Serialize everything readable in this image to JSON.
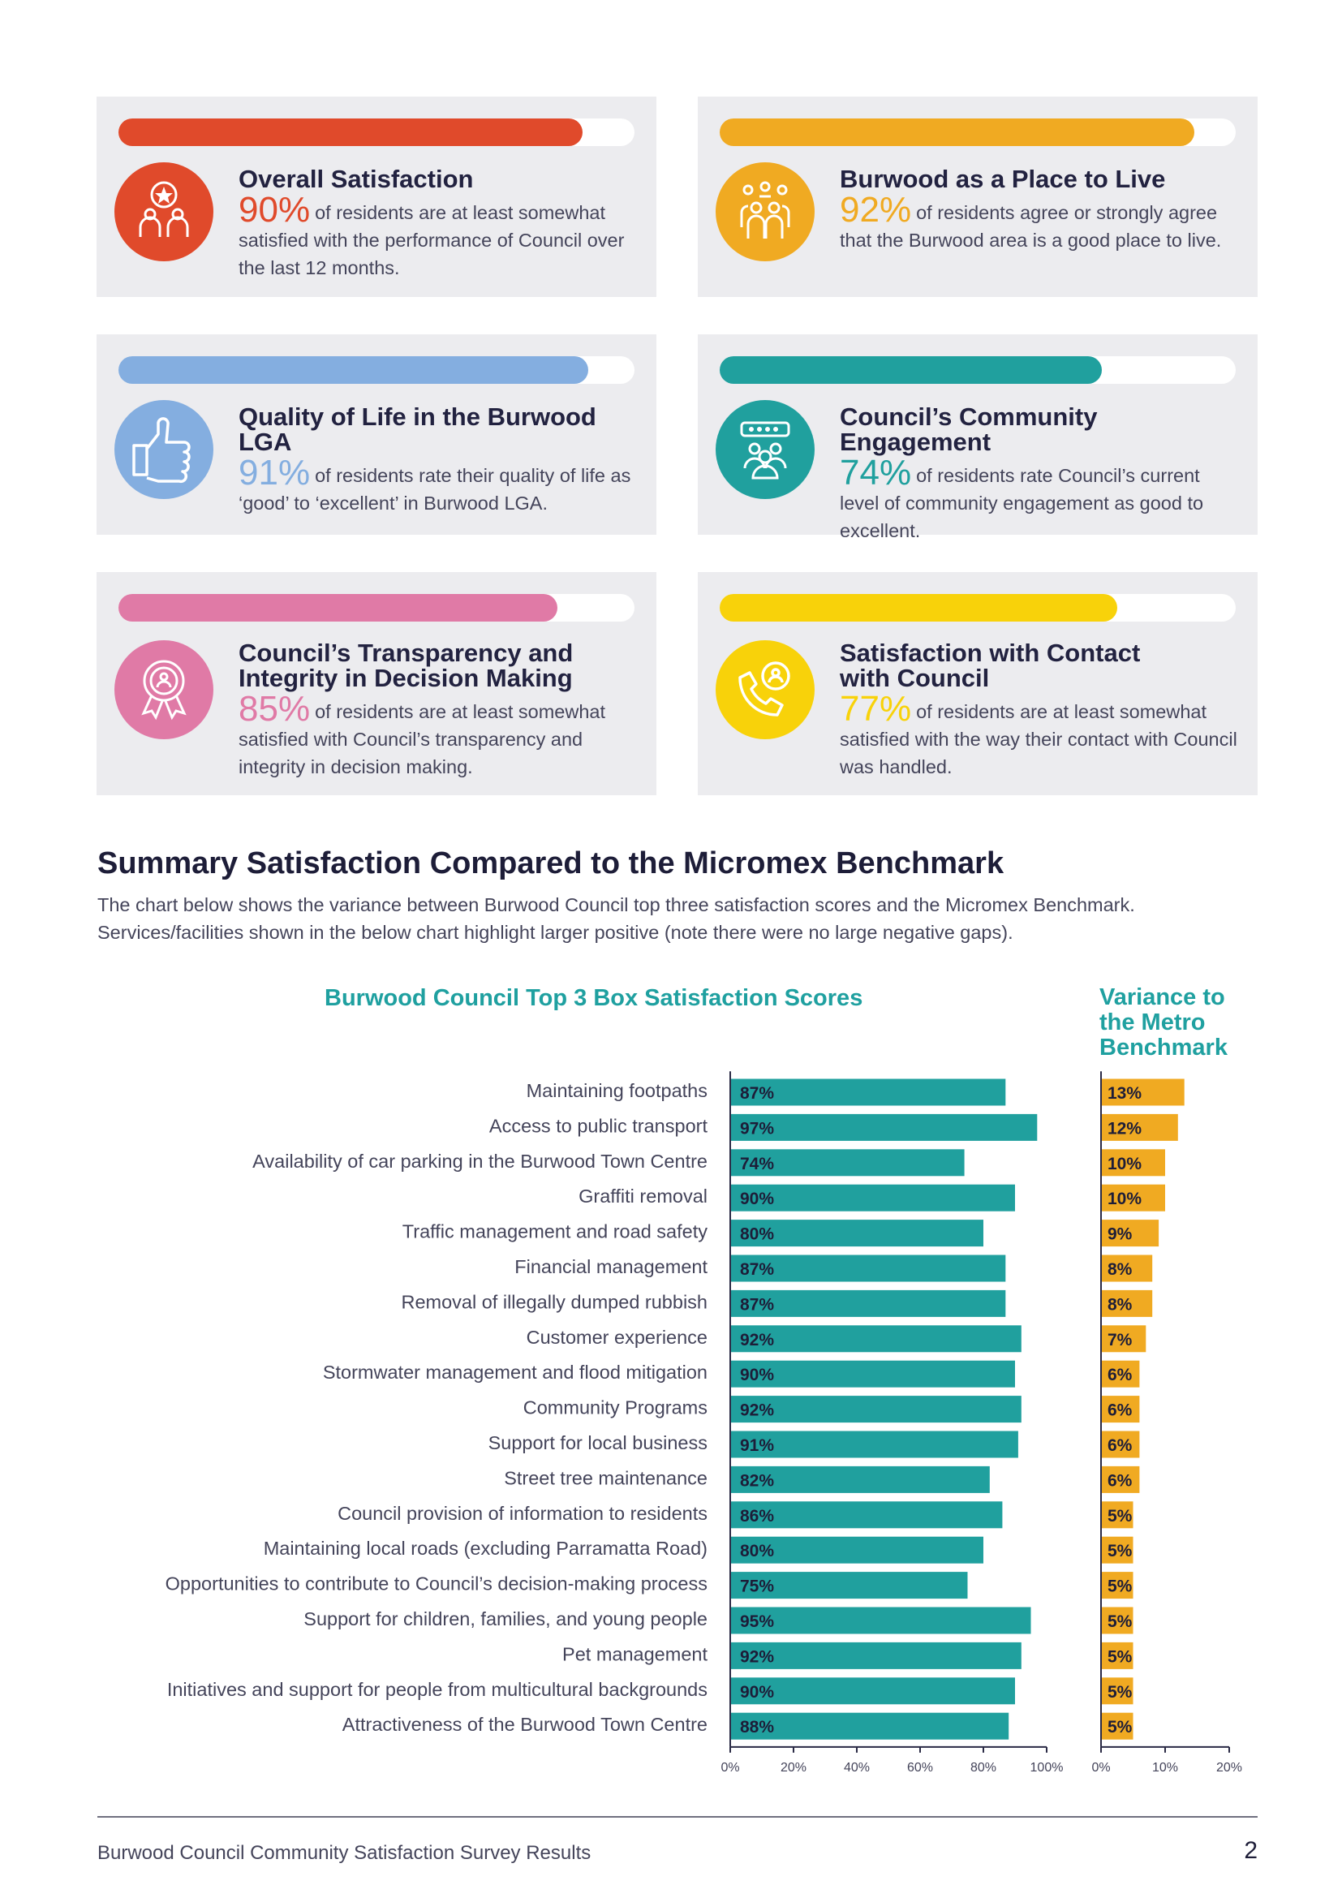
{
  "cards": [
    {
      "title": "Overall Satisfaction",
      "pct": "90%",
      "text": "of residents are at least somewhat satisfied with the performance of Council over the last 12 months.",
      "bar_level": 0.9,
      "color": "#e04a2b",
      "icon": "residents-star-icon"
    },
    {
      "title": "Burwood as a Place to Live",
      "pct": "92%",
      "text": "of residents agree or strongly agree that the Burwood area is a good place to live.",
      "bar_level": 0.92,
      "color": "#f0aa22",
      "icon": "community-group-icon"
    },
    {
      "title": "Quality of Life in the Burwood LGA",
      "pct": "91%",
      "text": "of residents rate their quality of life as ‘good’ to ‘excellent’ in Burwood LGA.",
      "bar_level": 0.91,
      "color": "#84aee0",
      "icon": "thumbs-up-icon"
    },
    {
      "title": "Council’s Community Engagement",
      "pct": "74%",
      "text": "of residents rate Council’s current level of community engagement as good to excellent.",
      "bar_level": 0.74,
      "color": "#20a09e",
      "icon": "engagement-group-icon"
    },
    {
      "title_line1": "Council’s Transparency and",
      "title_line2": "Integrity in Decision Making",
      "pct": "85%",
      "text": "of residents are at least somewhat satisfied with Council’s transparency and integrity in decision making.",
      "bar_level": 0.85,
      "color": "#e07aa6",
      "icon": "award-rosette-icon"
    },
    {
      "title_line1": "Satisfaction with Contact",
      "title_line2": "with Council",
      "pct": "77%",
      "text": "of residents are at least somewhat satisfied with the way their contact with Council was handled.",
      "bar_level": 0.77,
      "color": "#f8d20a",
      "icon": "phone-contact-icon"
    }
  ],
  "section": {
    "title": "Summary Satisfaction Compared to the Micromex Benchmark",
    "description": "The chart below shows the variance between Burwood Council top three satisfaction scores and the Micromex Benchmark. Services/facilities shown in the below chart highlight larger positive (note there were no large negative gaps)."
  },
  "chart_data": {
    "type": "bar",
    "title": "Burwood Council Top 3 Box Satisfaction Scores",
    "variance_title": "Variance to the Metro Benchmark",
    "categories": [
      "Maintaining footpaths",
      "Access to public transport",
      "Availability of car parking in the Burwood Town Centre",
      "Graffiti removal",
      "Traffic management and road safety",
      "Financial management",
      "Removal of illegally dumped rubbish",
      "Customer experience",
      "Stormwater management and flood mitigation",
      "Community Programs",
      "Support for local business",
      "Street tree maintenance",
      "Council provision of information to residents",
      "Maintaining local roads (excluding Parramatta Road)",
      "Opportunities to contribute to Council’s decision-making process",
      "Support for children, families, and young people",
      "Pet management",
      "Initiatives and support for people from multicultural backgrounds",
      "Attractiveness of the Burwood Town Centre"
    ],
    "series": [
      {
        "name": "Burwood Council Top 3 Box Satisfaction Scores",
        "values": [
          87,
          97,
          74,
          90,
          80,
          87,
          87,
          92,
          90,
          92,
          91,
          82,
          86,
          80,
          75,
          95,
          92,
          90,
          88
        ],
        "color": "#20a09e",
        "xlim": [
          0,
          100
        ],
        "ticks": [
          "0%",
          "20%",
          "40%",
          "60%",
          "80%",
          "100%"
        ]
      },
      {
        "name": "Variance to the Metro Benchmark",
        "values": [
          13,
          12,
          10,
          10,
          9,
          8,
          8,
          7,
          6,
          6,
          6,
          6,
          5,
          5,
          5,
          5,
          5,
          5,
          5
        ],
        "color": "#f0aa22",
        "xlim": [
          0,
          20
        ],
        "ticks": [
          "0%",
          "10%",
          "20%"
        ]
      }
    ],
    "value_suffix": "%"
  },
  "footer": {
    "text": "Burwood Council Community Satisfaction Survey Results",
    "page_number": "2"
  }
}
